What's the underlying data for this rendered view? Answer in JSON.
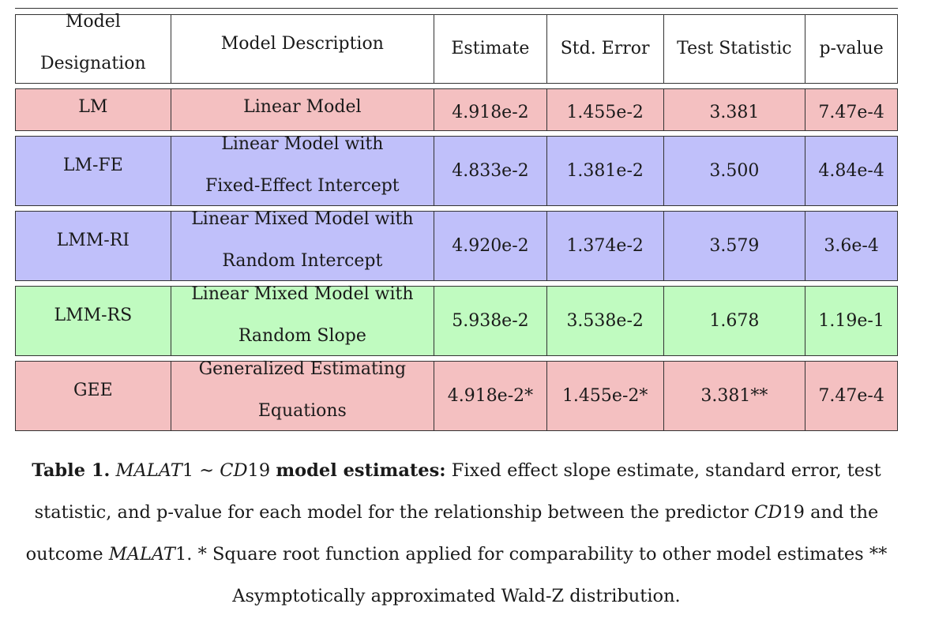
{
  "table": {
    "header": {
      "designation_line1": "Model",
      "designation_line2": "Designation",
      "description": "Model Description",
      "estimate": "Estimate",
      "std_error": "Std. Error",
      "test_statistic": "Test Statistic",
      "p_value": "p-value"
    },
    "rows": [
      {
        "designation": "LM",
        "desc1": "Linear Model",
        "desc2": "",
        "estimate": "4.918e-2",
        "std_error": "1.455e-2",
        "test_statistic": "3.381",
        "p_value": "7.47e-4",
        "color": "#f4c0c1"
      },
      {
        "designation": "LM-FE",
        "desc1": "Linear Model with",
        "desc2": "Fixed-Effect Intercept",
        "estimate": "4.833e-2",
        "std_error": "1.381e-2",
        "test_statistic": "3.500",
        "p_value": "4.84e-4",
        "color": "#c0c0fa"
      },
      {
        "designation": "LMM-RI",
        "desc1": "Linear Mixed Model with",
        "desc2": "Random Intercept",
        "estimate": "4.920e-2",
        "std_error": "1.374e-2",
        "test_statistic": "3.579",
        "p_value": "3.6e-4",
        "color": "#c0c0fa"
      },
      {
        "designation": "LMM-RS",
        "desc1": "Linear Mixed Model with",
        "desc2": "Random Slope",
        "estimate": "5.938e-2",
        "std_error": "3.538e-2",
        "test_statistic": "1.678",
        "p_value": "1.19e-1",
        "color": "#c0fbc0"
      },
      {
        "designation": "GEE",
        "desc1": "Generalized Estimating",
        "desc2": "Equations",
        "estimate": "4.918e-2*",
        "std_error": "1.455e-2*",
        "test_statistic": "3.381**",
        "p_value": "7.47e-4",
        "color": "#f4c0c1"
      }
    ]
  },
  "caption": {
    "label": "Table 1.",
    "formula_lhs": "MALAT",
    "formula_lhs_num": "1",
    "formula_op": "∼",
    "formula_rhs": "CD",
    "formula_rhs_num": "19",
    "bold_tail": "model estimates:",
    "text1": "Fixed effect slope estimate, standard error, test statistic, and p-value for each model for the relationship between the predictor",
    "predictor": "CD",
    "predictor_num": "19",
    "text2": "and the outcome",
    "outcome": "MALAT",
    "outcome_num": "1",
    "text3": ". * Square root function applied for comparability to other model estimates ** Asymptotically approximated Wald-Z distribution."
  }
}
